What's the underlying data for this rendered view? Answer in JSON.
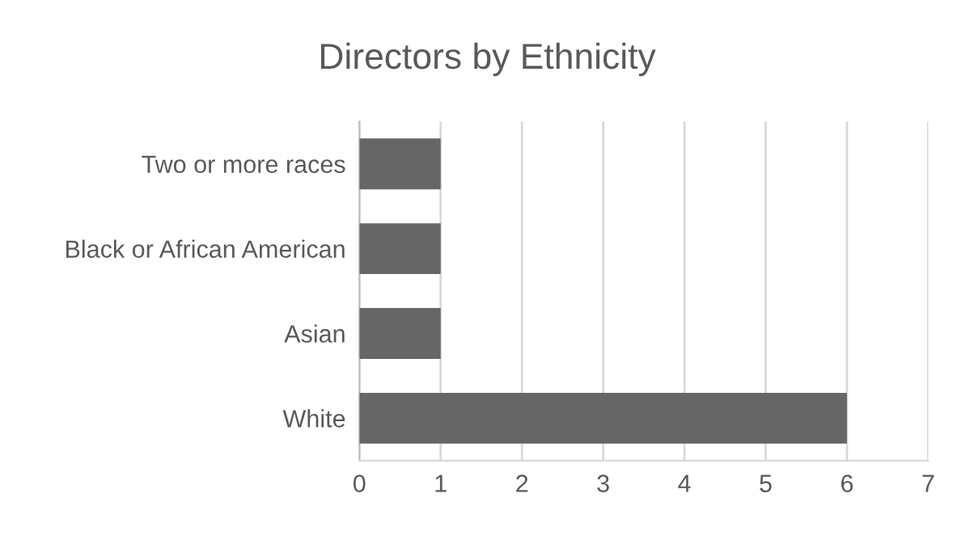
{
  "chart_data": {
    "type": "bar",
    "orientation": "horizontal",
    "title": "Directors by Ethnicity",
    "categories": [
      "Two or more races",
      "Black or African American",
      "Asian",
      "White"
    ],
    "values": [
      1,
      1,
      1,
      6
    ],
    "color": "#666666",
    "xlim": [
      0,
      7
    ],
    "xticks": [
      0,
      1,
      2,
      3,
      4,
      5,
      6,
      7
    ],
    "grid": "x",
    "legend": false
  }
}
